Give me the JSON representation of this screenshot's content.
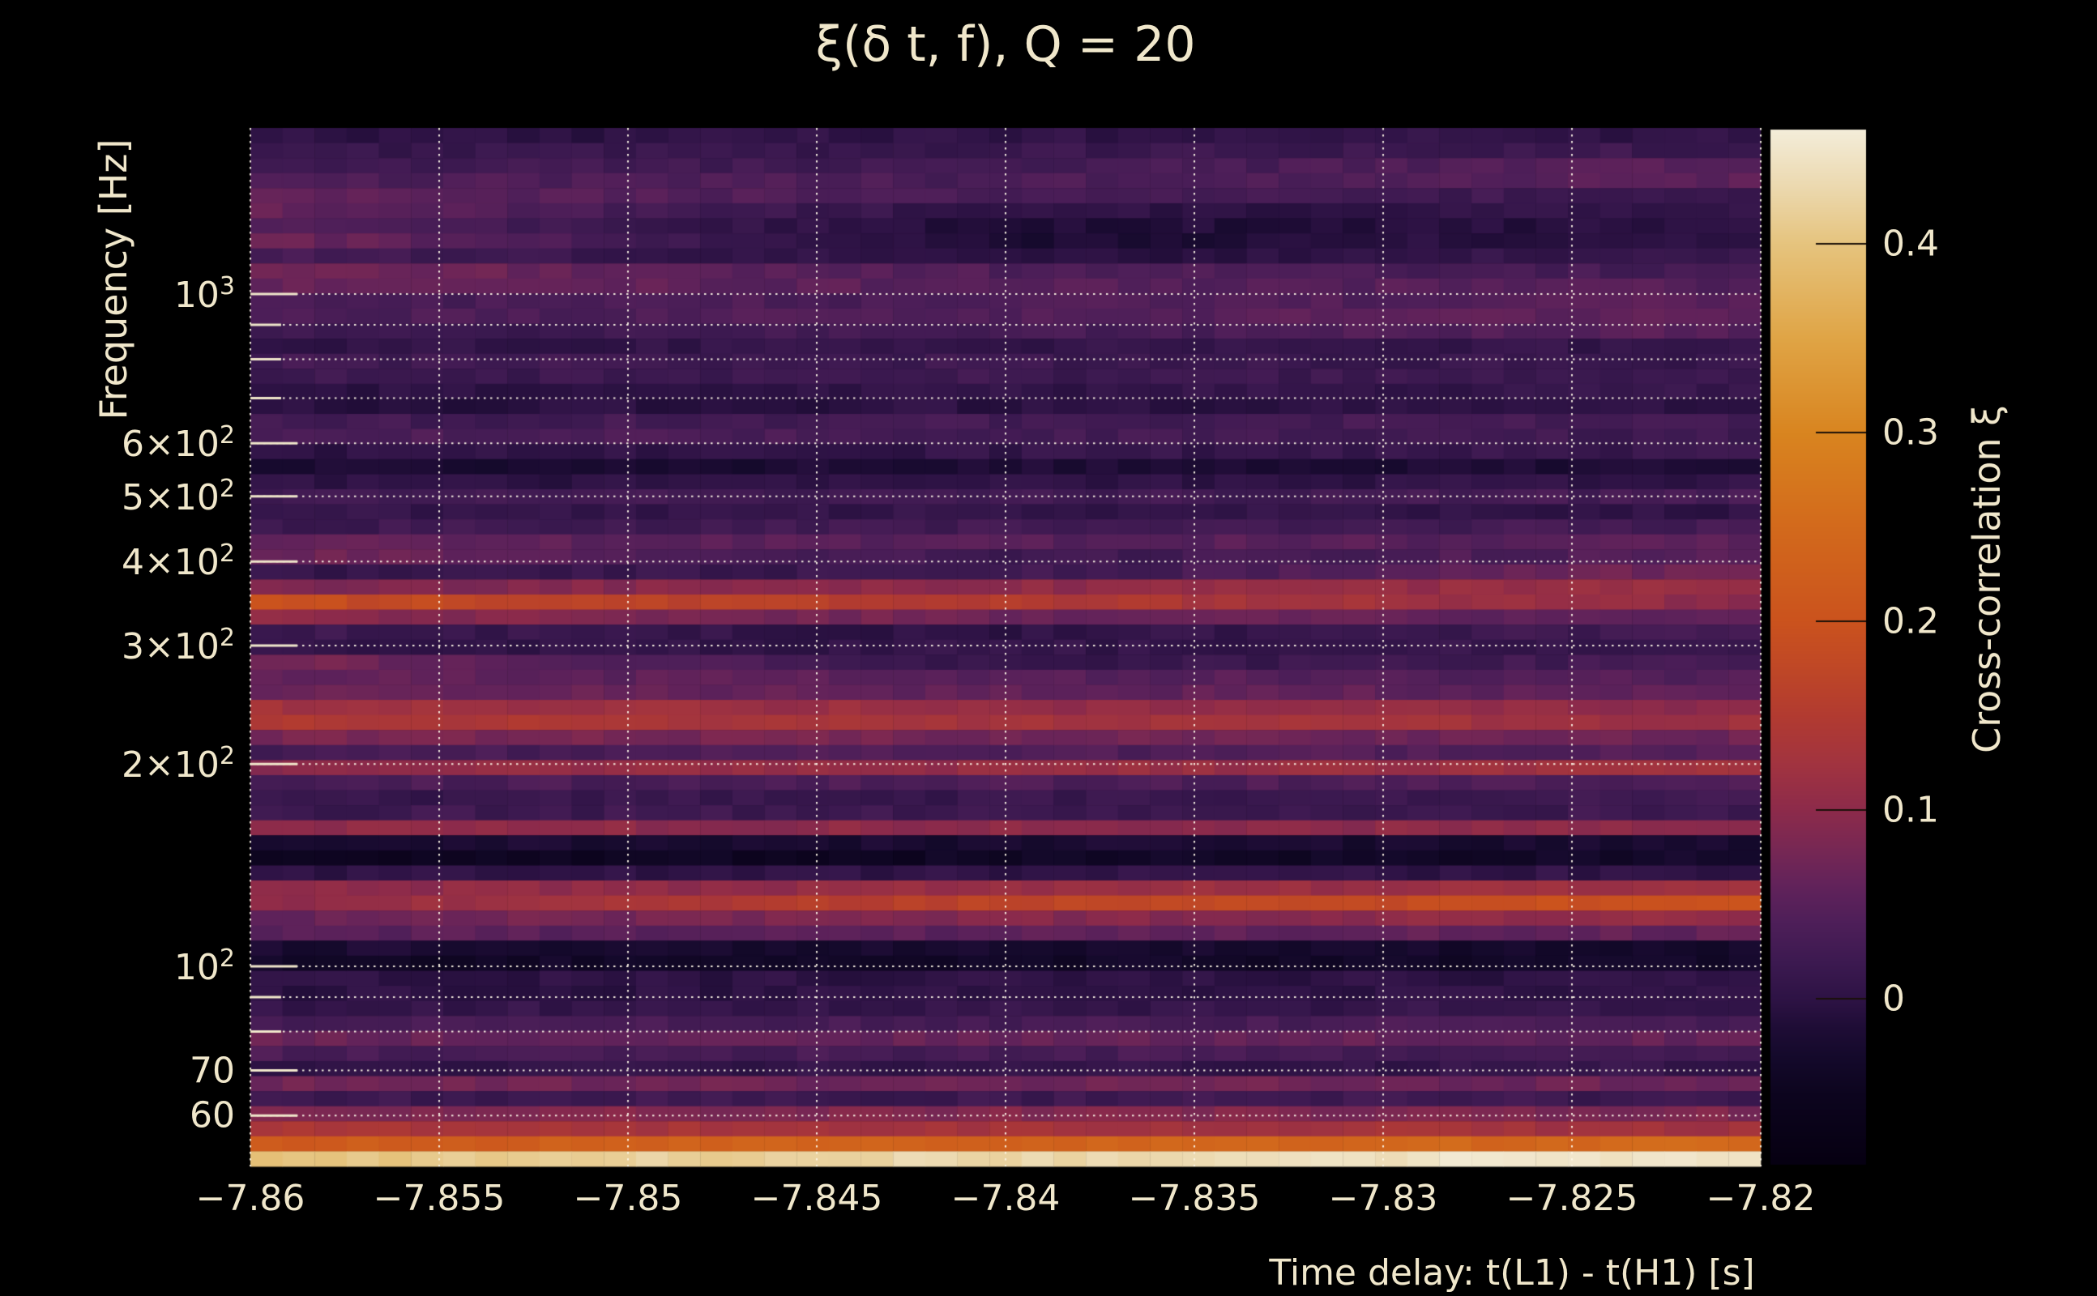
{
  "title": "ξ(δ t, f), Q = 20",
  "colors": {
    "background": "#000000",
    "text": "#f0e7cb",
    "gridline": "rgba(253,247,231,0.95)",
    "colorbar_tick": "#1a1008"
  },
  "axes": {
    "x": {
      "label": "Time delay: t(L1) - t(H1) [s]",
      "min": -7.86,
      "max": -7.82,
      "ticks": [
        {
          "v": -7.86,
          "label": "−7.86"
        },
        {
          "v": -7.855,
          "label": "−7.855"
        },
        {
          "v": -7.85,
          "label": "−7.85"
        },
        {
          "v": -7.845,
          "label": "−7.845"
        },
        {
          "v": -7.84,
          "label": "−7.84"
        },
        {
          "v": -7.835,
          "label": "−7.835"
        },
        {
          "v": -7.83,
          "label": "−7.83"
        },
        {
          "v": -7.825,
          "label": "−7.825"
        },
        {
          "v": -7.82,
          "label": "−7.82"
        }
      ]
    },
    "y": {
      "label": "Frequency [Hz]",
      "scale": "log",
      "min": 50.4,
      "max": 1766,
      "ticks": [
        {
          "v": 1000,
          "base": "10",
          "exp": "3"
        },
        {
          "v": 600,
          "base": "6×10",
          "exp": "2"
        },
        {
          "v": 500,
          "base": "5×10",
          "exp": "2"
        },
        {
          "v": 400,
          "base": "4×10",
          "exp": "2"
        },
        {
          "v": 300,
          "base": "3×10",
          "exp": "2"
        },
        {
          "v": 200,
          "base": "2×10",
          "exp": "2"
        },
        {
          "v": 100,
          "base": "10",
          "exp": "2"
        },
        {
          "v": 70,
          "base": "70",
          "exp": ""
        },
        {
          "v": 60,
          "base": "60",
          "exp": ""
        }
      ],
      "minor_gridlines": [
        900,
        800,
        700,
        90,
        80
      ]
    }
  },
  "colorbar": {
    "label": "Cross-correlation ξ",
    "min": -0.0875,
    "max": 0.4605,
    "ticks": [
      {
        "v": 0.4,
        "label": "0.4"
      },
      {
        "v": 0.3,
        "label": "0.3"
      },
      {
        "v": 0.2,
        "label": "0.2"
      },
      {
        "v": 0.1,
        "label": "0.1"
      },
      {
        "v": 0.0,
        "label": "0"
      }
    ]
  },
  "chart_data": {
    "type": "heatmap",
    "title": "ξ(δ t, f), Q = 20",
    "xlabel": "Time delay: t(L1) - t(H1) [s]",
    "ylabel": "Frequency [Hz]",
    "zlabel": "Cross-correlation ξ",
    "x_range": [
      -7.86,
      -7.82
    ],
    "freq_range_hz": [
      50.4,
      1766
    ],
    "value_range": [
      -0.0875,
      0.4605
    ],
    "n_rows": 69,
    "n_cols": 47,
    "row_order": "top_to_bottom_high_to_low_frequency",
    "row_values_left_mid_right": [
      [
        0.0,
        0.003,
        0.005
      ],
      [
        0.012,
        0.015,
        0.02
      ],
      [
        0.022,
        0.025,
        0.05
      ],
      [
        0.04,
        0.035,
        0.055
      ],
      [
        0.06,
        0.03,
        0.02
      ],
      [
        0.062,
        0.0,
        0.008
      ],
      [
        0.045,
        -0.015,
        -0.005
      ],
      [
        0.07,
        -0.02,
        0.005
      ],
      [
        0.032,
        -0.01,
        0.02
      ],
      [
        0.08,
        0.04,
        0.03
      ],
      [
        0.065,
        0.05,
        0.045
      ],
      [
        0.03,
        0.04,
        0.05
      ],
      [
        0.035,
        0.045,
        0.06
      ],
      [
        0.015,
        0.03,
        0.05
      ],
      [
        0.005,
        0.008,
        0.01
      ],
      [
        0.025,
        0.02,
        0.015
      ],
      [
        0.02,
        0.02,
        0.02
      ],
      [
        0.0,
        0.005,
        0.01
      ],
      [
        -0.005,
        0.0,
        0.005
      ],
      [
        0.025,
        0.028,
        0.03
      ],
      [
        0.04,
        0.03,
        0.02
      ],
      [
        0.0,
        0.008,
        0.015
      ],
      [
        -0.02,
        -0.018,
        -0.015
      ],
      [
        0.0,
        0.002,
        0.005
      ],
      [
        0.02,
        0.025,
        0.03
      ],
      [
        0.01,
        0.008,
        0.005
      ],
      [
        0.02,
        0.025,
        0.03
      ],
      [
        0.06,
        0.05,
        0.05
      ],
      [
        0.075,
        0.02,
        0.05
      ],
      [
        0.01,
        0.02,
        0.08
      ],
      [
        0.085,
        0.1,
        0.115
      ],
      [
        0.19,
        0.15,
        0.1
      ],
      [
        0.1,
        0.07,
        0.05
      ],
      [
        0.02,
        0.0,
        0.03
      ],
      [
        0.005,
        0.008,
        0.01
      ],
      [
        0.08,
        0.01,
        0.03
      ],
      [
        0.06,
        0.05,
        0.045
      ],
      [
        0.07,
        0.06,
        0.055
      ],
      [
        0.125,
        0.11,
        0.1
      ],
      [
        0.145,
        0.13,
        0.12
      ],
      [
        0.08,
        0.075,
        0.07
      ],
      [
        0.03,
        0.04,
        0.05
      ],
      [
        0.1,
        0.11,
        0.12
      ],
      [
        0.035,
        0.038,
        0.04
      ],
      [
        0.01,
        0.015,
        0.02
      ],
      [
        0.02,
        0.02,
        0.02
      ],
      [
        0.1,
        0.1,
        0.1
      ],
      [
        -0.02,
        -0.022,
        -0.025
      ],
      [
        -0.05,
        -0.04,
        -0.03
      ],
      [
        0.0,
        0.003,
        0.005
      ],
      [
        0.1,
        0.11,
        0.12
      ],
      [
        0.1,
        0.17,
        0.2
      ],
      [
        0.065,
        0.09,
        0.11
      ],
      [
        0.05,
        0.055,
        0.06
      ],
      [
        -0.02,
        -0.025,
        -0.03
      ],
      [
        -0.035,
        -0.035,
        -0.035
      ],
      [
        0.0,
        0.0,
        0.0
      ],
      [
        0.0,
        0.002,
        0.003
      ],
      [
        0.01,
        0.01,
        0.01
      ],
      [
        0.03,
        0.032,
        0.035
      ],
      [
        0.065,
        0.062,
        0.06
      ],
      [
        0.035,
        0.032,
        0.03
      ],
      [
        0.005,
        0.008,
        0.01
      ],
      [
        0.075,
        0.072,
        0.07
      ],
      [
        0.02,
        0.02,
        0.02
      ],
      [
        0.09,
        0.088,
        0.085
      ],
      [
        0.135,
        0.13,
        0.125
      ],
      [
        0.22,
        0.235,
        0.25
      ],
      [
        0.4,
        0.43,
        0.455
      ]
    ],
    "noise_amplitude": 0.011,
    "colormap_stops": [
      [
        -0.09,
        "#060011"
      ],
      [
        -0.05,
        "#0d051f"
      ],
      [
        -0.03,
        "#150a2c"
      ],
      [
        -0.015,
        "#1f0d36"
      ],
      [
        0.0,
        "#2e1345"
      ],
      [
        0.02,
        "#3d1a51"
      ],
      [
        0.04,
        "#4e1f59"
      ],
      [
        0.06,
        "#62235b"
      ],
      [
        0.08,
        "#782854"
      ],
      [
        0.1,
        "#8d2b4b"
      ],
      [
        0.125,
        "#a23440"
      ],
      [
        0.15,
        "#b23b31"
      ],
      [
        0.18,
        "#c24a25"
      ],
      [
        0.2,
        "#cb531e"
      ],
      [
        0.25,
        "#d36a1c"
      ],
      [
        0.3,
        "#d98520"
      ],
      [
        0.35,
        "#e0a546"
      ],
      [
        0.4,
        "#e6c47e"
      ],
      [
        0.43,
        "#ecd9af"
      ],
      [
        0.465,
        "#f5f0e0"
      ]
    ],
    "grid": "dotted_white_major_and_minor",
    "legend_position": "right_colorbar"
  }
}
